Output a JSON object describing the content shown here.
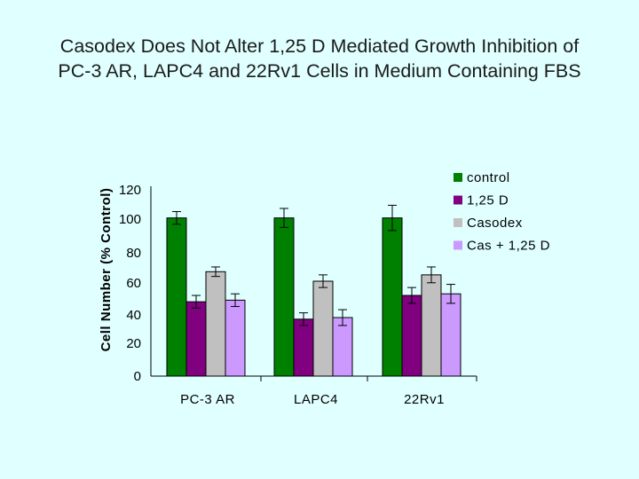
{
  "chart_data": {
    "type": "bar",
    "title_lines": [
      "Casodex Does Not Alter 1,25 D Mediated Growth Inhibition of",
      "PC-3 AR, LAPC4 and 22Rv1 Cells in Medium Containing FBS"
    ],
    "xlabel": "",
    "ylabel": "Cell Number (% Control)",
    "ylim": [
      0,
      120
    ],
    "yticks": [
      0,
      20,
      40,
      60,
      80,
      100,
      120
    ],
    "categories": [
      "PC-3 AR",
      "LAPC4",
      "22Rv1"
    ],
    "series": [
      {
        "name": "control",
        "color": "#008000",
        "values": [
          100,
          100,
          100
        ],
        "errors": [
          4,
          6,
          8
        ]
      },
      {
        "name": "1,25 D",
        "color": "#800080",
        "values": [
          47,
          36,
          51
        ],
        "errors": [
          4,
          4,
          5
        ]
      },
      {
        "name": "Casodex",
        "color": "#c0c0c0",
        "values": [
          66,
          60,
          64
        ],
        "errors": [
          3,
          4,
          5
        ]
      },
      {
        "name": "Cas + 1,25 D",
        "color": "#cc99ff",
        "values": [
          48,
          37,
          52
        ],
        "errors": [
          4,
          5,
          6
        ]
      }
    ],
    "legend_position": "top-right",
    "grid": false
  }
}
